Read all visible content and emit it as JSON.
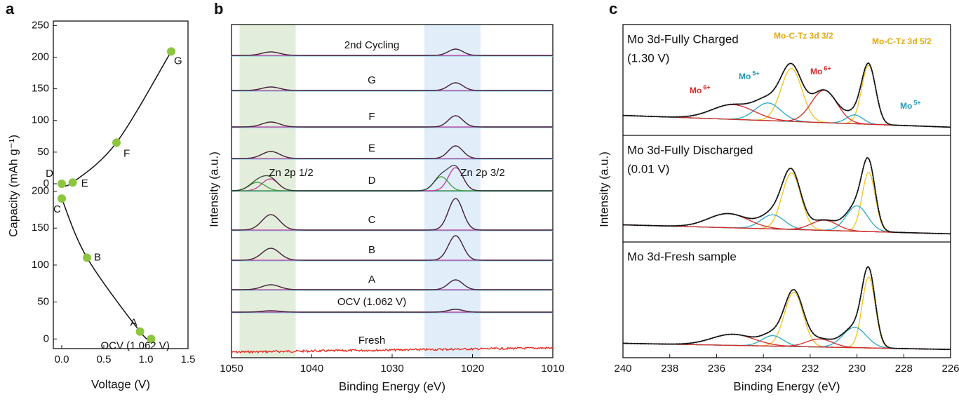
{
  "panel_labels": [
    "a",
    "b",
    "c"
  ],
  "chart_data": [
    {
      "type": "line",
      "x": [
        1.062,
        0.93,
        0.3,
        0.0
      ],
      "values": [
        0,
        10,
        110,
        190
      ],
      "point_labels": [
        "OCV (1.062 V)",
        "A",
        "B",
        "C"
      ],
      "color": "#8cc63f",
      "xlim": [
        -0.1,
        1.5
      ],
      "xticks": [
        {
          "value": 0,
          "label": "0.0"
        },
        {
          "value": 0.5,
          "label": "0.5"
        },
        {
          "value": 1,
          "label": "1.0"
        },
        {
          "value": 1.5,
          "label": "1.5"
        }
      ],
      "ylim": [
        -13,
        210
      ],
      "yticks": [
        0,
        50,
        100,
        150,
        200
      ],
      "xlabel": "Voltage (V)",
      "ylabel": "Capacity (mAh g⁻¹)"
    },
    {
      "type": "line",
      "x": [
        0.0,
        0.13,
        0.65,
        1.3
      ],
      "values": [
        0,
        2,
        65,
        209
      ],
      "point_labels": [
        "D",
        "E",
        "F",
        "G"
      ],
      "color": "#8cc63f",
      "xlim": [
        -0.1,
        1.5
      ],
      "ylim": [
        0,
        257
      ],
      "yticks": [
        0,
        50,
        100,
        150,
        200,
        250
      ]
    },
    {
      "type": "spectrum",
      "xlim": [
        1050,
        1010
      ],
      "xticks": [
        1050,
        1040,
        1030,
        1020,
        1010
      ],
      "ylim": [
        0,
        475
      ],
      "xlabel": "Binding Energy (eV)",
      "ylabel": "Intensity (a.u.)",
      "regions": [
        {
          "range": [
            1049,
            1042
          ],
          "color": "#e2eedb",
          "label": "Zn 2p 1/2"
        },
        {
          "range": [
            1026,
            1019
          ],
          "color": "#e1eefa",
          "label": "Zn 2p 3/2"
        }
      ],
      "line_color": "#222222",
      "component_color": "#c2399a",
      "baseline_color": "#8fd3e8",
      "series": [
        {
          "name": "2nd Cycling",
          "peaks": [
            {
              "center": 1045.1,
              "height": 5,
              "width": 1.1
            },
            {
              "center": 1022.1,
              "height": 9,
              "width": 0.9
            }
          ]
        },
        {
          "name": "G",
          "peaks": [
            {
              "center": 1045.1,
              "height": 5,
              "width": 1.1
            },
            {
              "center": 1022.1,
              "height": 11,
              "width": 0.9
            }
          ]
        },
        {
          "name": "F",
          "peaks": [
            {
              "center": 1045.1,
              "height": 7,
              "width": 1.1
            },
            {
              "center": 1022.1,
              "height": 16,
              "width": 0.9
            }
          ]
        },
        {
          "name": "E",
          "peaks": [
            {
              "center": 1045.1,
              "height": 10,
              "width": 1.1
            },
            {
              "center": 1022.1,
              "height": 18,
              "width": 0.9
            }
          ]
        },
        {
          "name": "D",
          "peaks": [
            {
              "center": 1045.2,
              "height": 17,
              "width": 1.0
            },
            {
              "center": 1046.8,
              "height": 12,
              "width": 1.0,
              "color": "#3a9a3a"
            },
            {
              "center": 1022.1,
              "height": 33,
              "width": 0.9
            },
            {
              "center": 1023.9,
              "height": 20,
              "width": 0.9,
              "color": "#3a9a3a"
            }
          ]
        },
        {
          "name": "C",
          "peaks": [
            {
              "center": 1045.1,
              "height": 22,
              "width": 1.1
            },
            {
              "center": 1022.1,
              "height": 45,
              "width": 0.9
            }
          ]
        },
        {
          "name": "B",
          "peaks": [
            {
              "center": 1045.1,
              "height": 17,
              "width": 1.1
            },
            {
              "center": 1022.1,
              "height": 35,
              "width": 0.9
            }
          ]
        },
        {
          "name": "A",
          "peaks": [
            {
              "center": 1045.1,
              "height": 7,
              "width": 1.1
            },
            {
              "center": 1022.1,
              "height": 14,
              "width": 0.9
            }
          ]
        },
        {
          "name": "OCV (1.062 V)",
          "peaks": [
            {
              "center": 1045.1,
              "height": 2,
              "width": 1.1
            },
            {
              "center": 1022.1,
              "height": 4,
              "width": 0.9
            }
          ]
        },
        {
          "name": "Fresh",
          "peaks": [],
          "color": "#e8271b"
        }
      ]
    },
    {
      "type": "spectrum",
      "xlim": [
        240,
        226
      ],
      "xticks": [
        240,
        238,
        236,
        234,
        232,
        230,
        228,
        226
      ],
      "ylim": [
        0,
        150
      ],
      "xlabel": "Binding Energy (eV)",
      "ylabel": "Intensity (a.u.)",
      "line_color": "#111111",
      "background_color": "#9b8b6a",
      "subplots": [
        {
          "title": "Mo 3d-Fully Charged",
          "subtitle": "(1.30 V)",
          "background": [
            22,
            2
          ],
          "components": [
            {
              "center": 229.5,
              "height": 100,
              "width": 0.3,
              "color": "#f2c21b"
            },
            {
              "center": 232.8,
              "height": 90,
              "width": 0.45,
              "color": "#f2c21b"
            },
            {
              "center": 230.1,
              "height": 15,
              "width": 0.35,
              "color": "#27a9c4"
            },
            {
              "center": 233.8,
              "height": 30,
              "width": 0.55,
              "color": "#27a9c4"
            },
            {
              "center": 231.4,
              "height": 55,
              "width": 0.55,
              "color": "#d62a2a"
            },
            {
              "center": 235.3,
              "height": 25,
              "width": 0.9,
              "color": "#d62a2a"
            }
          ]
        },
        {
          "title": "Mo 3d-Fully Discharged",
          "subtitle": "(0.01 V)",
          "background": [
            18,
            2
          ],
          "components": [
            {
              "center": 229.5,
              "height": 105,
              "width": 0.28,
              "color": "#f2c21b"
            },
            {
              "center": 232.8,
              "height": 100,
              "width": 0.4,
              "color": "#f2c21b"
            },
            {
              "center": 230.0,
              "height": 45,
              "width": 0.45,
              "color": "#27a9c4"
            },
            {
              "center": 233.6,
              "height": 25,
              "width": 0.5,
              "color": "#27a9c4"
            },
            {
              "center": 231.4,
              "height": 18,
              "width": 0.55,
              "color": "#d62a2a"
            },
            {
              "center": 235.5,
              "height": 25,
              "width": 0.85,
              "color": "#d62a2a"
            }
          ]
        },
        {
          "title": "Mo 3d-Fresh sample",
          "background": [
            12,
            2
          ],
          "components": [
            {
              "center": 229.5,
              "height": 115,
              "width": 0.28,
              "color": "#f2c21b"
            },
            {
              "center": 232.7,
              "height": 88,
              "width": 0.4,
              "color": "#f2c21b"
            },
            {
              "center": 230.1,
              "height": 33,
              "width": 0.5,
              "color": "#27a9c4"
            },
            {
              "center": 233.6,
              "height": 17,
              "width": 0.45,
              "color": "#27a9c4"
            },
            {
              "center": 231.6,
              "height": 13,
              "width": 0.55,
              "color": "#d62a2a"
            },
            {
              "center": 235.3,
              "height": 18,
              "width": 0.9,
              "color": "#d62a2a"
            }
          ]
        }
      ],
      "annotations": [
        {
          "text": "Mo-C-Tz 3d 3/2",
          "color": "#e0aa10"
        },
        {
          "text": "Mo-C-Tz 3d 5/2",
          "color": "#e0aa10"
        },
        {
          "text": "Mo",
          "sup": "6+",
          "color": "#d62a2a"
        },
        {
          "text": "Mo",
          "sup": "6+",
          "color": "#d62a2a"
        },
        {
          "text": "Mo",
          "sup": "5+",
          "color": "#1e9ab5"
        },
        {
          "text": "Mo",
          "sup": "5+",
          "color": "#1e9ab5"
        }
      ]
    }
  ]
}
